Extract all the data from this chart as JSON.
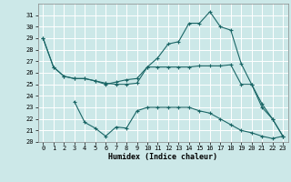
{
  "title": "",
  "xlabel": "Humidex (Indice chaleur)",
  "bg_color": "#cce8e8",
  "grid_color": "#ffffff",
  "line_color": "#1a6666",
  "xlim": [
    -0.5,
    23.5
  ],
  "ylim": [
    20,
    32
  ],
  "yticks": [
    20,
    21,
    22,
    23,
    24,
    25,
    26,
    27,
    28,
    29,
    30,
    31
  ],
  "xticks": [
    0,
    1,
    2,
    3,
    4,
    5,
    6,
    7,
    8,
    9,
    10,
    11,
    12,
    13,
    14,
    15,
    16,
    17,
    18,
    19,
    20,
    21,
    22,
    23
  ],
  "series": [
    {
      "x": [
        0,
        1,
        2,
        3,
        4,
        5,
        6,
        7,
        8,
        9,
        10,
        11,
        12,
        13,
        14,
        15,
        16,
        17,
        18,
        19,
        20,
        21,
        22,
        23
      ],
      "y": [
        29,
        26.5,
        25.7,
        25.5,
        25.5,
        25.3,
        25.1,
        25.0,
        25.0,
        25.1,
        26.5,
        26.5,
        26.5,
        26.5,
        26.5,
        26.6,
        26.6,
        26.6,
        26.7,
        25.0,
        25.0,
        23.0,
        22.0,
        20.5
      ]
    },
    {
      "x": [
        0,
        1,
        2,
        3,
        4,
        5,
        6,
        7,
        8,
        9,
        10,
        11,
        12,
        13,
        14,
        15,
        16,
        17,
        18,
        19,
        20,
        21,
        22,
        23
      ],
      "y": [
        29,
        26.5,
        25.7,
        25.5,
        25.5,
        25.3,
        25.0,
        25.2,
        25.4,
        25.5,
        26.5,
        27.3,
        28.5,
        28.7,
        30.3,
        30.3,
        31.3,
        30.0,
        29.7,
        26.8,
        25.0,
        23.3,
        22.0,
        20.5
      ]
    },
    {
      "x": [
        3,
        4,
        5,
        6,
        7,
        8,
        9,
        10,
        11,
        12,
        13,
        14,
        15,
        16,
        17,
        18,
        19,
        20,
        21,
        22,
        23
      ],
      "y": [
        23.5,
        21.7,
        21.2,
        20.5,
        21.3,
        21.2,
        22.7,
        23.0,
        23.0,
        23.0,
        23.0,
        23.0,
        22.7,
        22.5,
        22.0,
        21.5,
        21.0,
        20.8,
        20.5,
        20.3,
        20.5
      ]
    }
  ]
}
